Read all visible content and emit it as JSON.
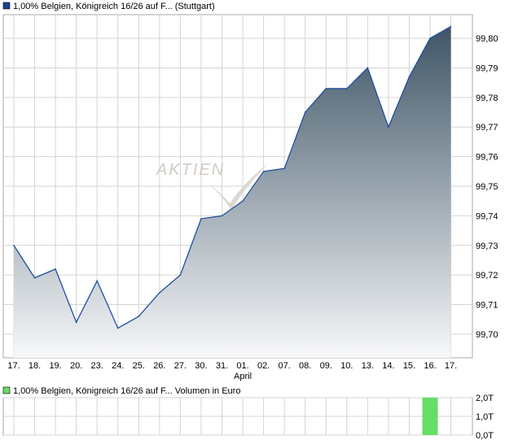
{
  "colors": {
    "price_line": "#1f4fa0",
    "area_top": "#3f5566",
    "area_bottom": "#f7f8fa",
    "grid": "#d4d4d4",
    "legend_price": "#1f3f8f",
    "volume_bar": "#66dd66",
    "watermark": "#c9c2bb"
  },
  "legend": {
    "price_label": "1,00% Belgien, Königreich 16/26 auf F... (Stuttgart)",
    "volume_label": "1,00% Belgien, Königreich 16/26 auf F... Volumen in Euro"
  },
  "watermark_text": "AKTIEN",
  "chart_data": [
    {
      "type": "area",
      "series": [
        {
          "name": "1,00% Belgien, Königreich 16/26 auf F... (Stuttgart)",
          "values": [
            99.73,
            99.719,
            99.722,
            99.704,
            99.718,
            99.702,
            99.706,
            99.714,
            99.72,
            99.739,
            99.74,
            99.745,
            99.755,
            99.756,
            99.775,
            99.783,
            99.783,
            99.79,
            99.77,
            99.787,
            99.8,
            99.804
          ]
        }
      ],
      "categories": [
        "17.",
        "18.",
        "19.",
        "20.",
        "23.",
        "24.",
        "25.",
        "26.",
        "27.",
        "30.",
        "31.",
        "01.",
        "02.",
        "07.",
        "08.",
        "09.",
        "10.",
        "13.",
        "14.",
        "15.",
        "16.",
        "17."
      ],
      "month_label": "April",
      "month_label_index": 11,
      "yticks": [
        "99,70",
        "99,71",
        "99,72",
        "99,73",
        "99,74",
        "99,75",
        "99,76",
        "99,77",
        "99,78",
        "99,79",
        "99,80"
      ],
      "ylim": [
        99.692,
        99.808
      ],
      "grid": true
    },
    {
      "type": "bar",
      "categories": [
        "17.",
        "18.",
        "19.",
        "20.",
        "23.",
        "24.",
        "25.",
        "26.",
        "27.",
        "30.",
        "31.",
        "01.",
        "02.",
        "07.",
        "08.",
        "09.",
        "10.",
        "13.",
        "14.",
        "15.",
        "16.",
        "17."
      ],
      "series": [
        {
          "name": "Volumen in Euro",
          "values": [
            0,
            0,
            0,
            0,
            0,
            0,
            0,
            0,
            0,
            0,
            0,
            0,
            0,
            0,
            0,
            0,
            0,
            0,
            0,
            0,
            2.0,
            0
          ]
        }
      ],
      "yticks": [
        "0,0T",
        "1,0T",
        "2,0T"
      ],
      "ylim": [
        0,
        2.0
      ],
      "grid": true
    }
  ]
}
